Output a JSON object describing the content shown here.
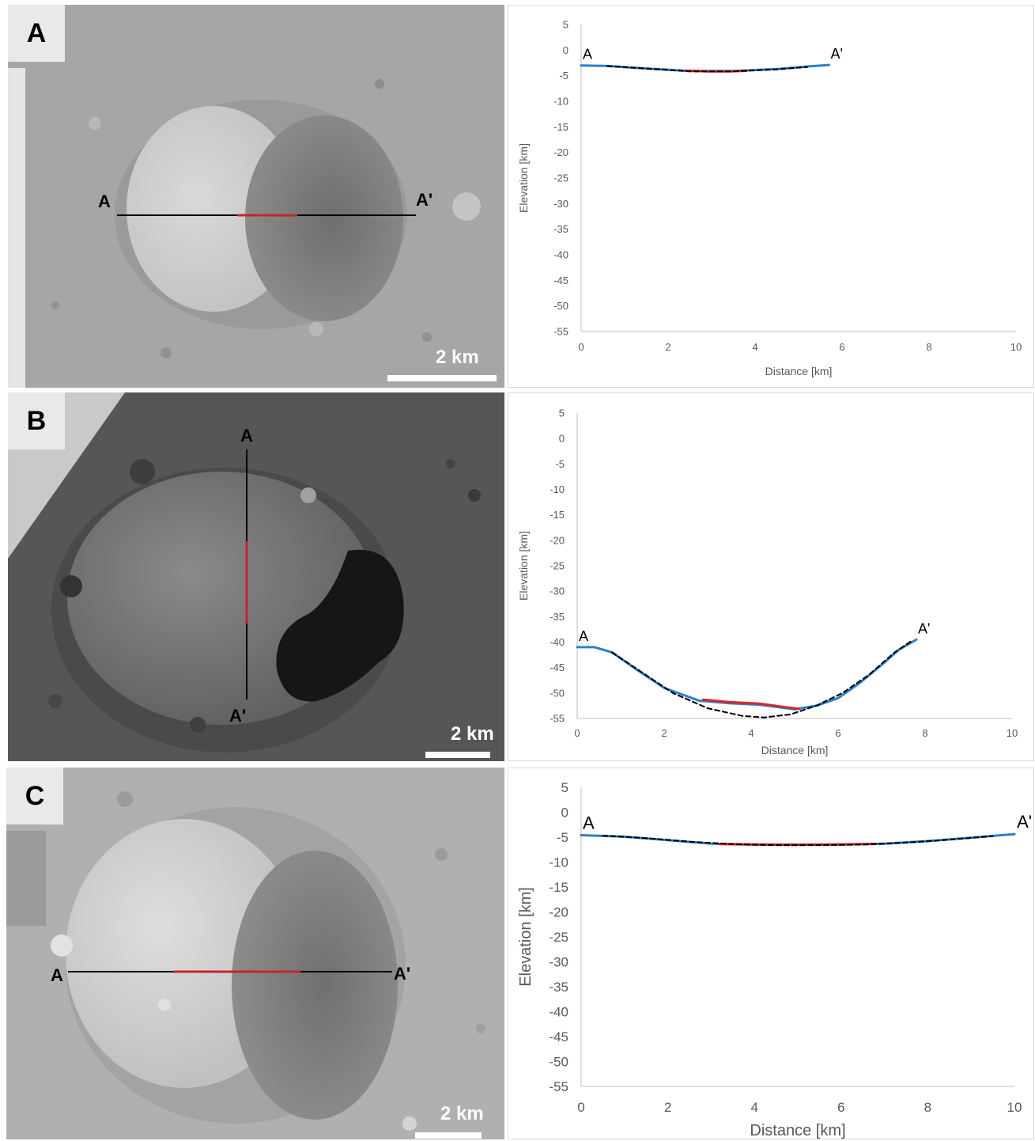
{
  "panels": [
    {
      "letter": "A",
      "scale_label": "2 km",
      "profile_start": "A",
      "profile_end": "A'",
      "image_tone": "light",
      "profile_orientation": "horizontal"
    },
    {
      "letter": "B",
      "scale_label": "2 km",
      "profile_start": "A",
      "profile_end": "A'",
      "image_tone": "dark",
      "profile_orientation": "vertical"
    },
    {
      "letter": "C",
      "scale_label": "2 km",
      "profile_start": "A",
      "profile_end": "A'",
      "image_tone": "light",
      "profile_orientation": "horizontal"
    }
  ],
  "colors": {
    "profile_line": "#000000",
    "profile_highlight": "#c0282b",
    "series_blue": "#2e7fc8",
    "series_red": "#d9252a",
    "fit_dashed": "#000000",
    "axis_text": "#595959"
  },
  "chart_data": [
    {
      "type": "line",
      "xlabel": "Distance [km]",
      "ylabel": "Elevation [km]",
      "xlim": [
        0,
        10
      ],
      "ylim": [
        -55,
        5
      ],
      "xticks": [
        0,
        2,
        4,
        6,
        8,
        10
      ],
      "yticks": [
        5,
        0,
        -5,
        -10,
        -15,
        -20,
        -25,
        -30,
        -35,
        -40,
        -45,
        -50,
        -55
      ],
      "grid": false,
      "start_label": "A",
      "end_label": "A'",
      "series": [
        {
          "color": "blue",
          "x": [
            0,
            0.6,
            1.5,
            2.5,
            3.5,
            4.5,
            5.2,
            5.7
          ],
          "y": [
            -3.0,
            -3.1,
            -3.6,
            -4.1,
            -4.1,
            -3.7,
            -3.2,
            -2.9
          ]
        },
        {
          "color": "red",
          "x": [
            2.4,
            2.9,
            3.4,
            3.8
          ],
          "y": [
            -4.0,
            -4.15,
            -4.15,
            -4.05
          ]
        },
        {
          "color": "dashed",
          "x": [
            0.6,
            1.5,
            2.5,
            3.5,
            4.5,
            5.2
          ],
          "y": [
            -3.1,
            -3.6,
            -4.15,
            -4.15,
            -3.75,
            -3.3
          ]
        }
      ]
    },
    {
      "type": "line",
      "xlabel": "Distance [km]",
      "ylabel": "Elevation [km]",
      "xlim": [
        0,
        10
      ],
      "ylim": [
        -55,
        5
      ],
      "xticks": [
        0,
        2,
        4,
        6,
        8,
        10
      ],
      "yticks": [
        5,
        0,
        -5,
        -10,
        -15,
        -20,
        -25,
        -30,
        -35,
        -40,
        -45,
        -50,
        -55
      ],
      "grid": false,
      "start_label": "A",
      "end_label": "A'",
      "series": [
        {
          "color": "blue",
          "x": [
            0,
            0.4,
            0.8,
            1.3,
            2.0,
            2.8,
            3.5,
            4.2,
            5.0,
            5.5,
            6.0,
            6.5,
            7.0,
            7.4,
            7.8
          ],
          "y": [
            -41.0,
            -41.0,
            -42.0,
            -45.0,
            -49.0,
            -51.5,
            -52.0,
            -52.3,
            -53.2,
            -52.5,
            -51.0,
            -48.0,
            -44.5,
            -41.5,
            -39.5
          ]
        },
        {
          "color": "red",
          "x": [
            2.9,
            3.5,
            4.2,
            4.8,
            5.1
          ],
          "y": [
            -51.3,
            -51.8,
            -52.1,
            -52.8,
            -53.1
          ]
        },
        {
          "color": "dashed",
          "x": [
            0.8,
            1.5,
            2.2,
            3.0,
            3.8,
            4.3,
            4.9,
            5.5,
            6.1,
            6.7,
            7.3,
            7.7
          ],
          "y": [
            -42.0,
            -46.0,
            -50.0,
            -53.0,
            -54.5,
            -54.8,
            -54.2,
            -52.5,
            -50.0,
            -46.5,
            -42.0,
            -39.7
          ]
        }
      ]
    },
    {
      "type": "line",
      "xlabel": "Distance [km]",
      "ylabel": "Elevation [km]",
      "xlim": [
        0,
        10
      ],
      "ylim": [
        -55,
        5
      ],
      "xticks": [
        0,
        2,
        4,
        6,
        8,
        10
      ],
      "yticks": [
        5,
        0,
        -5,
        -10,
        -15,
        -20,
        -25,
        -30,
        -35,
        -40,
        -45,
        -50,
        -55
      ],
      "grid": false,
      "start_label": "A",
      "end_label": "A'",
      "series": [
        {
          "color": "blue",
          "x": [
            0,
            1.0,
            2.0,
            3.0,
            4.0,
            5.0,
            6.0,
            7.0,
            8.0,
            9.0,
            10.0
          ],
          "y": [
            -4.6,
            -4.9,
            -5.6,
            -6.3,
            -6.5,
            -6.5,
            -6.5,
            -6.3,
            -5.8,
            -5.1,
            -4.4
          ]
        },
        {
          "color": "red",
          "x": [
            3.2,
            4.0,
            4.8,
            5.6,
            6.4,
            6.8
          ],
          "y": [
            -6.4,
            -6.5,
            -6.55,
            -6.5,
            -6.4,
            -6.35
          ]
        },
        {
          "color": "dashed",
          "x": [
            0.5,
            1.5,
            2.5,
            3.5,
            4.5,
            5.5,
            6.5,
            7.5,
            8.5,
            9.5
          ],
          "y": [
            -4.7,
            -5.2,
            -5.9,
            -6.4,
            -6.6,
            -6.6,
            -6.5,
            -6.1,
            -5.5,
            -4.8
          ]
        }
      ]
    }
  ]
}
